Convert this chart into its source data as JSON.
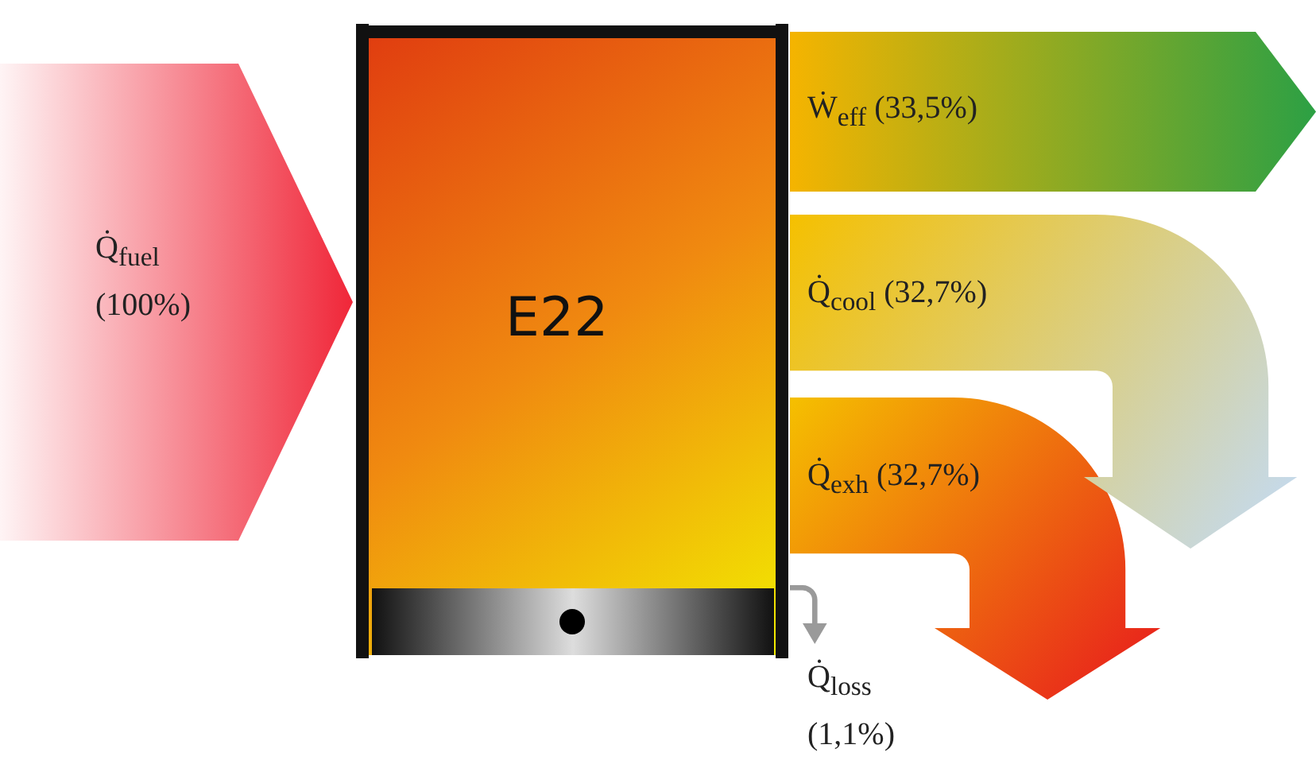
{
  "chart_data": {
    "type": "other",
    "annotations": [
      "E22"
    ],
    "categories": [
      "Q̇$_{fuel}$",
      "Ẇ$_{eff}$",
      "Q̇$_{cool}$",
      "Q̇$_{exh}$",
      "Q̇$_{loss}$"
    ],
    "values": [
      100,
      33.5,
      32.7,
      32.7,
      1.1
    ],
    "value_labels": [
      "(100%)",
      "(33,5%)",
      "(32,7%)",
      "(32,7%)",
      "(1,1%)"
    ],
    "colors": [
      "#f0283a",
      "#2ca044",
      "#c4daf0",
      "#e8201c",
      "#9a9a9a"
    ]
  }
}
